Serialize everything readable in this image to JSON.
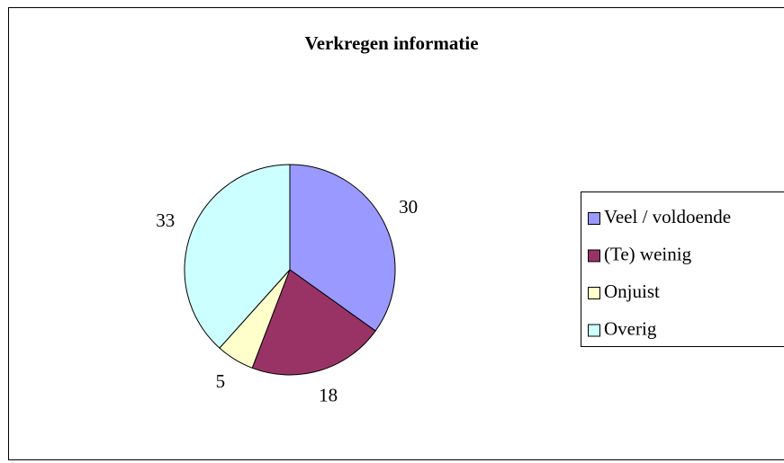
{
  "chart_data": {
    "type": "pie",
    "title": "Verkregen informatie",
    "categories": [
      "Veel / voldoende",
      "(Te) weinig",
      "Onjuist",
      "Overig"
    ],
    "values": [
      30,
      18,
      5,
      33
    ],
    "colors": [
      "#9999ff",
      "#993366",
      "#ffffcc",
      "#ccffff"
    ],
    "legend": "right"
  }
}
